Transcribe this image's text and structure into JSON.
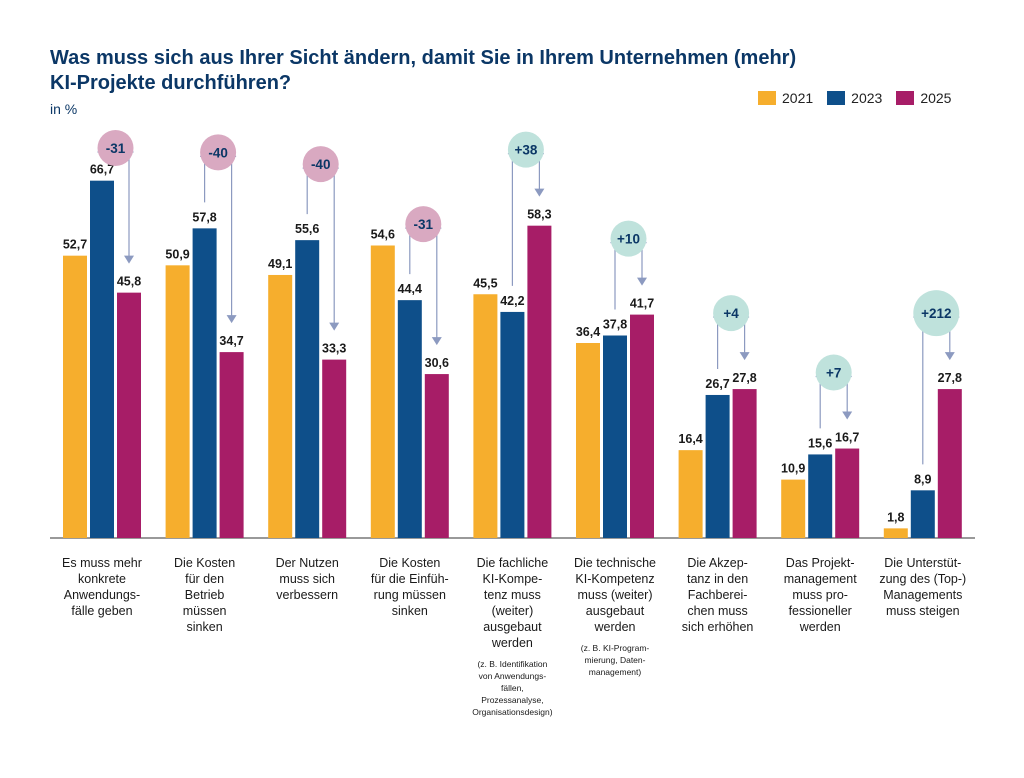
{
  "colors": {
    "y2021": "#f6ae2d",
    "y2023": "#0e4f8a",
    "y2025": "#a71d67",
    "neg_bubble": "#d9a9c1",
    "pos_bubble": "#bfe2dc",
    "arrow": "#8c9ac0"
  },
  "chart_data": {
    "type": "bar",
    "title": "Was muss sich aus Ihrer Sicht ändern, damit Sie in Ihrem Unternehmen (mehr) KI-Projekte durchführen?",
    "subtitle": "in %",
    "categories": [
      {
        "label": [
          "Es muss mehr",
          "konkrete",
          "Anwendungs-",
          "fälle geben"
        ],
        "note": []
      },
      {
        "label": [
          "Die Kosten",
          "für den",
          "Betrieb",
          "müssen",
          "sinken"
        ],
        "note": []
      },
      {
        "label": [
          "Der Nutzen",
          "muss sich",
          "verbessern"
        ],
        "note": []
      },
      {
        "label": [
          "Die Kosten",
          "für die Einfüh-",
          "rung müssen",
          "sinken"
        ],
        "note": []
      },
      {
        "label": [
          "Die fachliche",
          "KI-Kompe-",
          "tenz muss",
          "(weiter)",
          "ausgebaut",
          "werden"
        ],
        "note": [
          "(z. B. Identifikation",
          "von Anwendungs-",
          "fällen,",
          "Prozessanalyse,",
          "Organisationsdesign)"
        ]
      },
      {
        "label": [
          "Die technische",
          "KI-Kompetenz",
          "muss (weiter)",
          "ausgebaut",
          "werden"
        ],
        "note": [
          "(z. B. KI-Program-",
          "mierung, Daten-",
          "management)"
        ]
      },
      {
        "label": [
          "Die Akzep-",
          "tanz in den",
          "Fachberei-",
          "chen muss",
          "sich erhöhen"
        ],
        "note": []
      },
      {
        "label": [
          "Das Projekt-",
          "management",
          "muss pro-",
          "fessioneller",
          "werden"
        ],
        "note": []
      },
      {
        "label": [
          "Die Unterstüt-",
          "zung des (Top-)",
          "Managements",
          "muss steigen"
        ],
        "note": []
      }
    ],
    "series": [
      {
        "name": "2021",
        "values": [
          52.7,
          50.9,
          49.1,
          54.6,
          45.5,
          36.4,
          16.4,
          10.9,
          1.8
        ],
        "labels": [
          "52,7",
          "50,9",
          "49,1",
          "54,6",
          "45,5",
          "36,4",
          "16,4",
          "10,9",
          "1,8"
        ]
      },
      {
        "name": "2023",
        "values": [
          66.7,
          57.8,
          55.6,
          44.4,
          42.2,
          37.8,
          26.7,
          15.6,
          8.9
        ],
        "labels": [
          "66,7",
          "57,8",
          "55,6",
          "44,4",
          "42,2",
          "37,8",
          "26,7",
          "15,6",
          "8,9"
        ]
      },
      {
        "name": "2025",
        "values": [
          45.8,
          34.7,
          33.3,
          30.6,
          58.3,
          41.7,
          27.8,
          16.7,
          27.8
        ],
        "labels": [
          "45,8",
          "34,7",
          "33,3",
          "30,6",
          "58,3",
          "41,7",
          "27,8",
          "16,7",
          "27,8"
        ]
      }
    ],
    "changes": [
      "-31",
      "-40",
      "-40",
      "-31",
      "+38",
      "+10",
      "+4",
      "+7",
      "+212"
    ],
    "ylim": [
      0,
      70
    ],
    "grid": false,
    "legend_position": "top-right"
  }
}
